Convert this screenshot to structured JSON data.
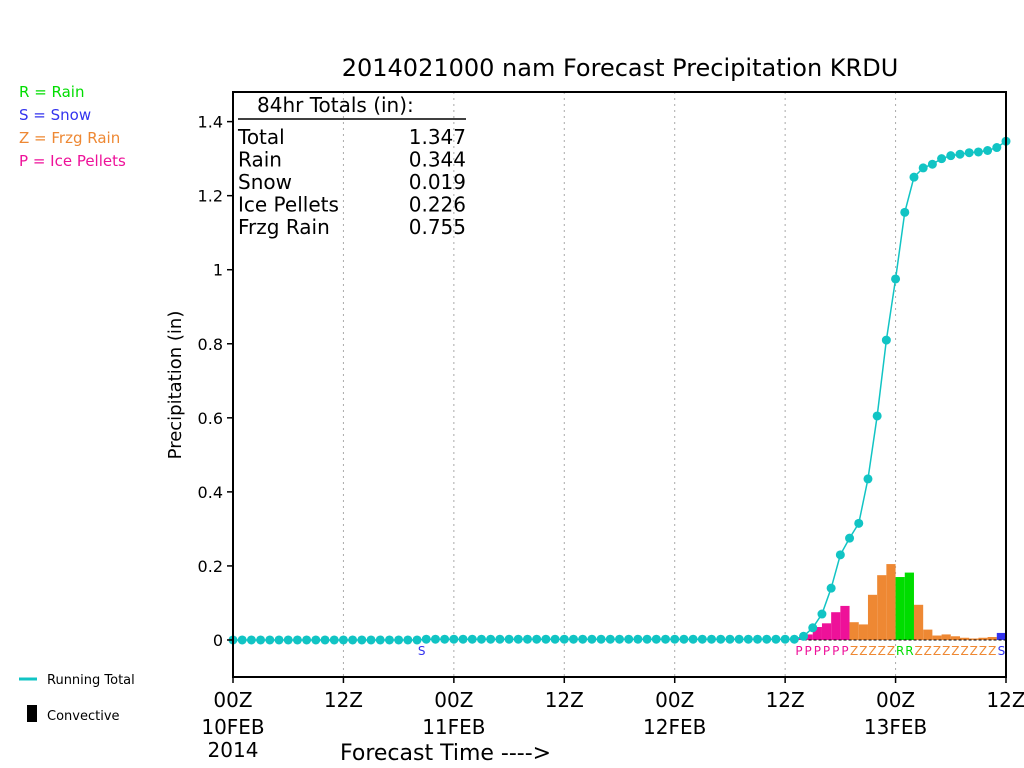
{
  "title": "2014021000 nam Forecast Precipitation KRDU",
  "ylabel": "Precipitation (in)",
  "xlabel": "Forecast Time ---->",
  "precip_legend": [
    {
      "text": "R = Rain",
      "color": "#00dd00"
    },
    {
      "text": "S = Snow",
      "color": "#3333ee"
    },
    {
      "text": "Z = Frzg Rain",
      "color": "#ee8833"
    },
    {
      "text": "P = Ice Pellets",
      "color": "#ee1199"
    }
  ],
  "bottom_legend": {
    "running_total": "Running Total",
    "convective": "Convective"
  },
  "totals_box": {
    "header": "84hr Totals (in):",
    "rows": [
      {
        "label": "Total",
        "value": "1.347"
      },
      {
        "label": "Rain",
        "value": "0.344"
      },
      {
        "label": "Snow",
        "value": "0.019"
      },
      {
        "label": "Ice Pellets",
        "value": "0.226"
      },
      {
        "label": "Frzg Rain",
        "value": "0.755"
      }
    ]
  },
  "colors": {
    "running_total": "#11c4c4",
    "rain": "#00dd00",
    "snow": "#3333ee",
    "frzg_rain": "#ee8833",
    "ice_pellets": "#ee1199"
  },
  "chart_data": {
    "type": "bar",
    "x_unit": "forecast hour",
    "xlim": [
      0,
      84
    ],
    "ylim": [
      -0.1,
      1.48
    ],
    "y_ticks": [
      0,
      0.2,
      0.4,
      0.6,
      0.8,
      1,
      1.2,
      1.4
    ],
    "y_tick_labels": [
      "0",
      "0.2",
      "0.4",
      "0.6",
      "0.8",
      "1",
      "1.2",
      "1.4"
    ],
    "x_ticks": [
      {
        "hour": 0,
        "label": "00Z",
        "date": "10FEB",
        "year": "2014"
      },
      {
        "hour": 12,
        "label": "12Z"
      },
      {
        "hour": 24,
        "label": "00Z",
        "date": "11FEB"
      },
      {
        "hour": 36,
        "label": "12Z"
      },
      {
        "hour": 48,
        "label": "00Z",
        "date": "12FEB"
      },
      {
        "hour": 60,
        "label": "12Z"
      },
      {
        "hour": 72,
        "label": "00Z",
        "date": "13FEB"
      },
      {
        "hour": 84,
        "label": "12Z"
      }
    ],
    "bars": [
      {
        "hour": 21,
        "value": 0.002,
        "type": "S"
      },
      {
        "hour": 62,
        "value": 0.005,
        "type": "P"
      },
      {
        "hour": 63,
        "value": 0.015,
        "type": "P"
      },
      {
        "hour": 64,
        "value": 0.035,
        "type": "P"
      },
      {
        "hour": 65,
        "value": 0.045,
        "type": "P"
      },
      {
        "hour": 66,
        "value": 0.075,
        "type": "P"
      },
      {
        "hour": 67,
        "value": 0.092,
        "type": "P"
      },
      {
        "hour": 68,
        "value": 0.048,
        "type": "Z"
      },
      {
        "hour": 69,
        "value": 0.042,
        "type": "Z"
      },
      {
        "hour": 70,
        "value": 0.122,
        "type": "Z"
      },
      {
        "hour": 71,
        "value": 0.175,
        "type": "Z"
      },
      {
        "hour": 72,
        "value": 0.205,
        "type": "Z"
      },
      {
        "hour": 73,
        "value": 0.17,
        "type": "R"
      },
      {
        "hour": 74,
        "value": 0.182,
        "type": "R"
      },
      {
        "hour": 75,
        "value": 0.095,
        "type": "Z"
      },
      {
        "hour": 76,
        "value": 0.028,
        "type": "Z"
      },
      {
        "hour": 77,
        "value": 0.012,
        "type": "Z"
      },
      {
        "hour": 78,
        "value": 0.015,
        "type": "Z"
      },
      {
        "hour": 79,
        "value": 0.01,
        "type": "Z"
      },
      {
        "hour": 80,
        "value": 0.006,
        "type": "Z"
      },
      {
        "hour": 81,
        "value": 0.004,
        "type": "Z"
      },
      {
        "hour": 82,
        "value": 0.006,
        "type": "Z"
      },
      {
        "hour": 83,
        "value": 0.008,
        "type": "Z"
      },
      {
        "hour": 84,
        "value": 0.019,
        "type": "S"
      }
    ],
    "type_labels": [
      {
        "hour": 21,
        "text": "S"
      },
      {
        "hour": 62,
        "text": "P"
      },
      {
        "hour": 63,
        "text": "P"
      },
      {
        "hour": 64,
        "text": "P"
      },
      {
        "hour": 65,
        "text": "P"
      },
      {
        "hour": 66,
        "text": "P"
      },
      {
        "hour": 67,
        "text": "P"
      },
      {
        "hour": 68,
        "text": "Z"
      },
      {
        "hour": 69,
        "text": "Z"
      },
      {
        "hour": 70,
        "text": "Z"
      },
      {
        "hour": 71,
        "text": "Z"
      },
      {
        "hour": 72,
        "text": "Z"
      },
      {
        "hour": 73,
        "text": "R"
      },
      {
        "hour": 74,
        "text": "R"
      },
      {
        "hour": 75,
        "text": "Z"
      },
      {
        "hour": 76,
        "text": "Z"
      },
      {
        "hour": 77,
        "text": "Z"
      },
      {
        "hour": 78,
        "text": "Z"
      },
      {
        "hour": 79,
        "text": "Z"
      },
      {
        "hour": 80,
        "text": "Z"
      },
      {
        "hour": 81,
        "text": "Z"
      },
      {
        "hour": 82,
        "text": "Z"
      },
      {
        "hour": 83,
        "text": "Z"
      },
      {
        "hour": 84,
        "text": "S"
      }
    ],
    "running_total": {
      "hours": [
        0,
        1,
        2,
        3,
        4,
        5,
        6,
        7,
        8,
        9,
        10,
        11,
        12,
        13,
        14,
        15,
        16,
        17,
        18,
        19,
        20,
        21,
        22,
        23,
        24,
        25,
        26,
        27,
        28,
        29,
        30,
        31,
        32,
        33,
        34,
        35,
        36,
        37,
        38,
        39,
        40,
        41,
        42,
        43,
        44,
        45,
        46,
        47,
        48,
        49,
        50,
        51,
        52,
        53,
        54,
        55,
        56,
        57,
        58,
        59,
        60,
        61,
        62,
        63,
        64,
        65,
        66,
        67,
        68,
        69,
        70,
        71,
        72,
        73,
        74,
        75,
        76,
        77,
        78,
        79,
        80,
        81,
        82,
        83,
        84
      ],
      "values": [
        0,
        0,
        0,
        0,
        0,
        0,
        0,
        0,
        0,
        0,
        0,
        0,
        0,
        0,
        0,
        0,
        0,
        0,
        0,
        0,
        0,
        0.002,
        0.002,
        0.002,
        0.002,
        0.002,
        0.002,
        0.002,
        0.002,
        0.002,
        0.002,
        0.002,
        0.002,
        0.002,
        0.002,
        0.002,
        0.002,
        0.002,
        0.002,
        0.002,
        0.002,
        0.002,
        0.002,
        0.002,
        0.002,
        0.002,
        0.002,
        0.002,
        0.002,
        0.002,
        0.002,
        0.002,
        0.002,
        0.002,
        0.002,
        0.002,
        0.002,
        0.002,
        0.002,
        0.002,
        0.002,
        0.002,
        0.01,
        0.033,
        0.07,
        0.14,
        0.23,
        0.275,
        0.315,
        0.435,
        0.605,
        0.81,
        0.975,
        1.155,
        1.25,
        1.275,
        1.285,
        1.3,
        1.308,
        1.312,
        1.316,
        1.318,
        1.322,
        1.33,
        1.347
      ]
    }
  }
}
